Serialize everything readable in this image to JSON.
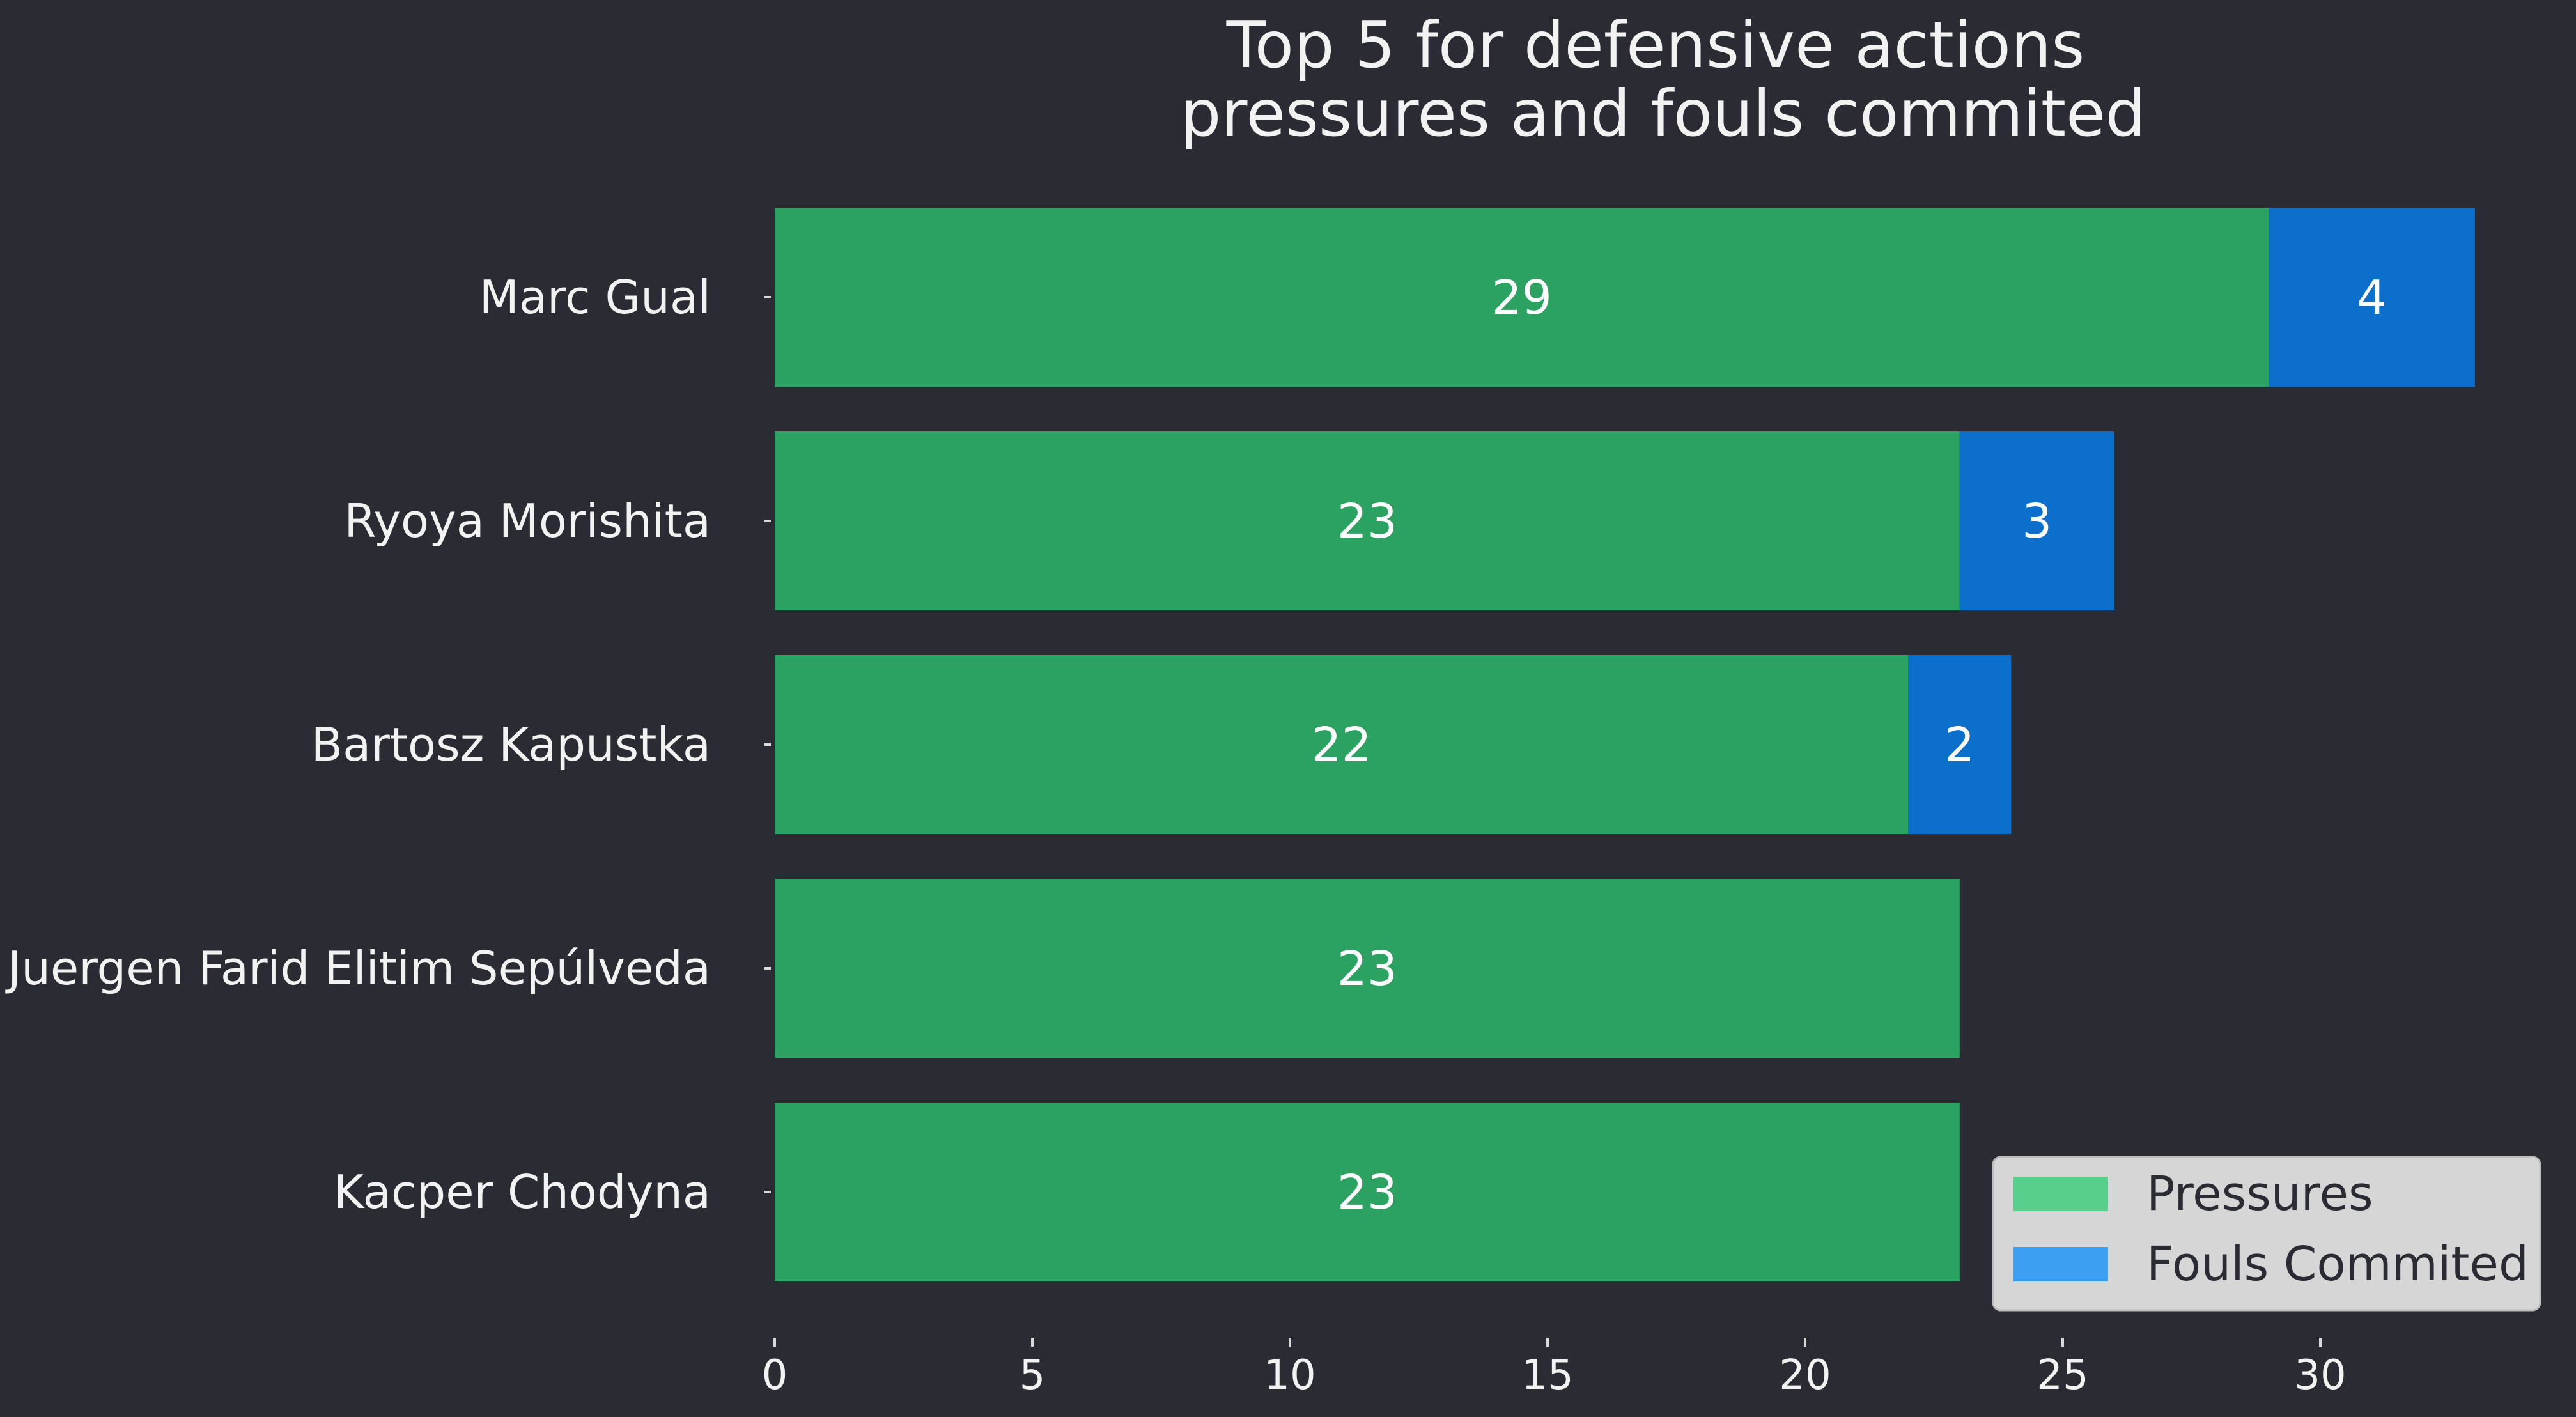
{
  "colors": {
    "background": "#2b2c33",
    "text": "#f2f2f2",
    "pressures_bar": "#2ca262",
    "fouls_bar": "#0c6fcc",
    "pressures_legend": "#58cf8b",
    "fouls_legend": "#3d9ff2",
    "legend_background": "#d6d6d6"
  },
  "chart_data": {
    "type": "bar",
    "orientation": "horizontal",
    "stacked": true,
    "title": "Top 5 for defensive actions\npressures and fouls commited",
    "title_lines": [
      "Top 5 for defensive actions",
      "pressures and fouls commited"
    ],
    "xlabel": "",
    "ylabel": "",
    "categories": [
      "Marc Gual",
      "Ryoya Morishita",
      "Bartosz Kapustka",
      "Juergen Farid Elitim Sepúlveda",
      "Kacper Chodyna"
    ],
    "series": [
      {
        "name": "Pressures",
        "values": [
          29,
          23,
          22,
          23,
          23
        ],
        "labels": [
          "29",
          "23",
          "22",
          "23",
          "23"
        ]
      },
      {
        "name": "Fouls Commited",
        "values": [
          4,
          3,
          2,
          0,
          0
        ],
        "labels": [
          "4",
          "3",
          "2",
          "",
          ""
        ]
      }
    ],
    "xlim": [
      0,
      33
    ],
    "xticks": [
      0,
      5,
      10,
      15,
      20,
      25,
      30
    ],
    "grid": false,
    "legend_position": "bottom-right"
  }
}
